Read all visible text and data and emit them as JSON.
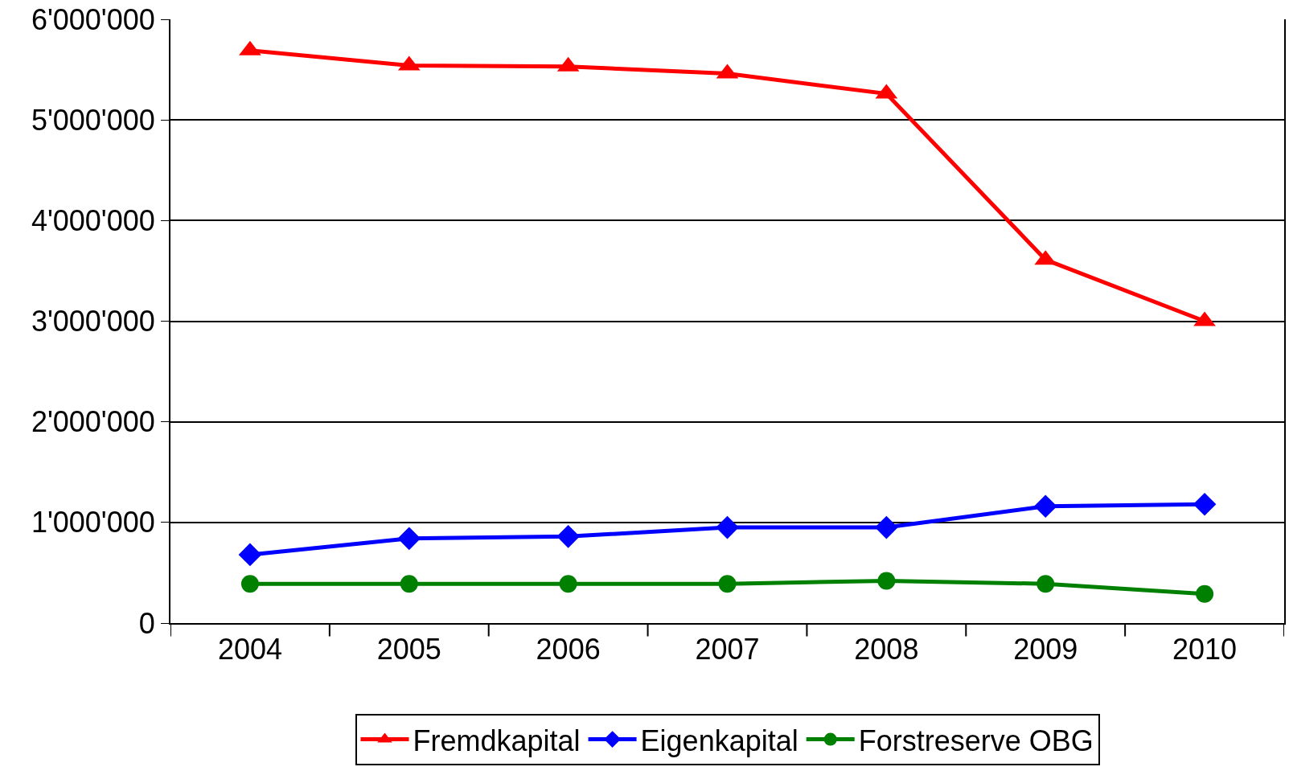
{
  "chart_data": {
    "type": "line",
    "categories": [
      "2004",
      "2005",
      "2006",
      "2007",
      "2008",
      "2009",
      "2010"
    ],
    "series": [
      {
        "name": "Fremdkapital",
        "color": "#ff0000",
        "marker": "triangle",
        "values": [
          5690000,
          5540000,
          5530000,
          5460000,
          5260000,
          3610000,
          3000000
        ]
      },
      {
        "name": "Eigenkapital",
        "color": "#0000ff",
        "marker": "diamond",
        "values": [
          680000,
          840000,
          860000,
          950000,
          950000,
          1160000,
          1180000
        ]
      },
      {
        "name": "Forstreserve OBG",
        "color": "#008000",
        "marker": "circle",
        "values": [
          390000,
          390000,
          390000,
          390000,
          420000,
          390000,
          290000
        ]
      }
    ],
    "ylim": [
      0,
      6000000
    ],
    "yticks": [
      0,
      {
        "value": 1000000,
        "label": "1'000'000"
      },
      {
        "value": 2000000,
        "label": "2'000'000"
      },
      {
        "value": 3000000,
        "label": "3'000'000"
      },
      {
        "value": 4000000,
        "label": "4'000'000"
      },
      {
        "value": 5000000,
        "label": "5'000'000"
      },
      {
        "value": 6000000,
        "label": "6'000'000"
      }
    ],
    "grid": "y",
    "legend": "bottom",
    "line_style": "solid"
  }
}
